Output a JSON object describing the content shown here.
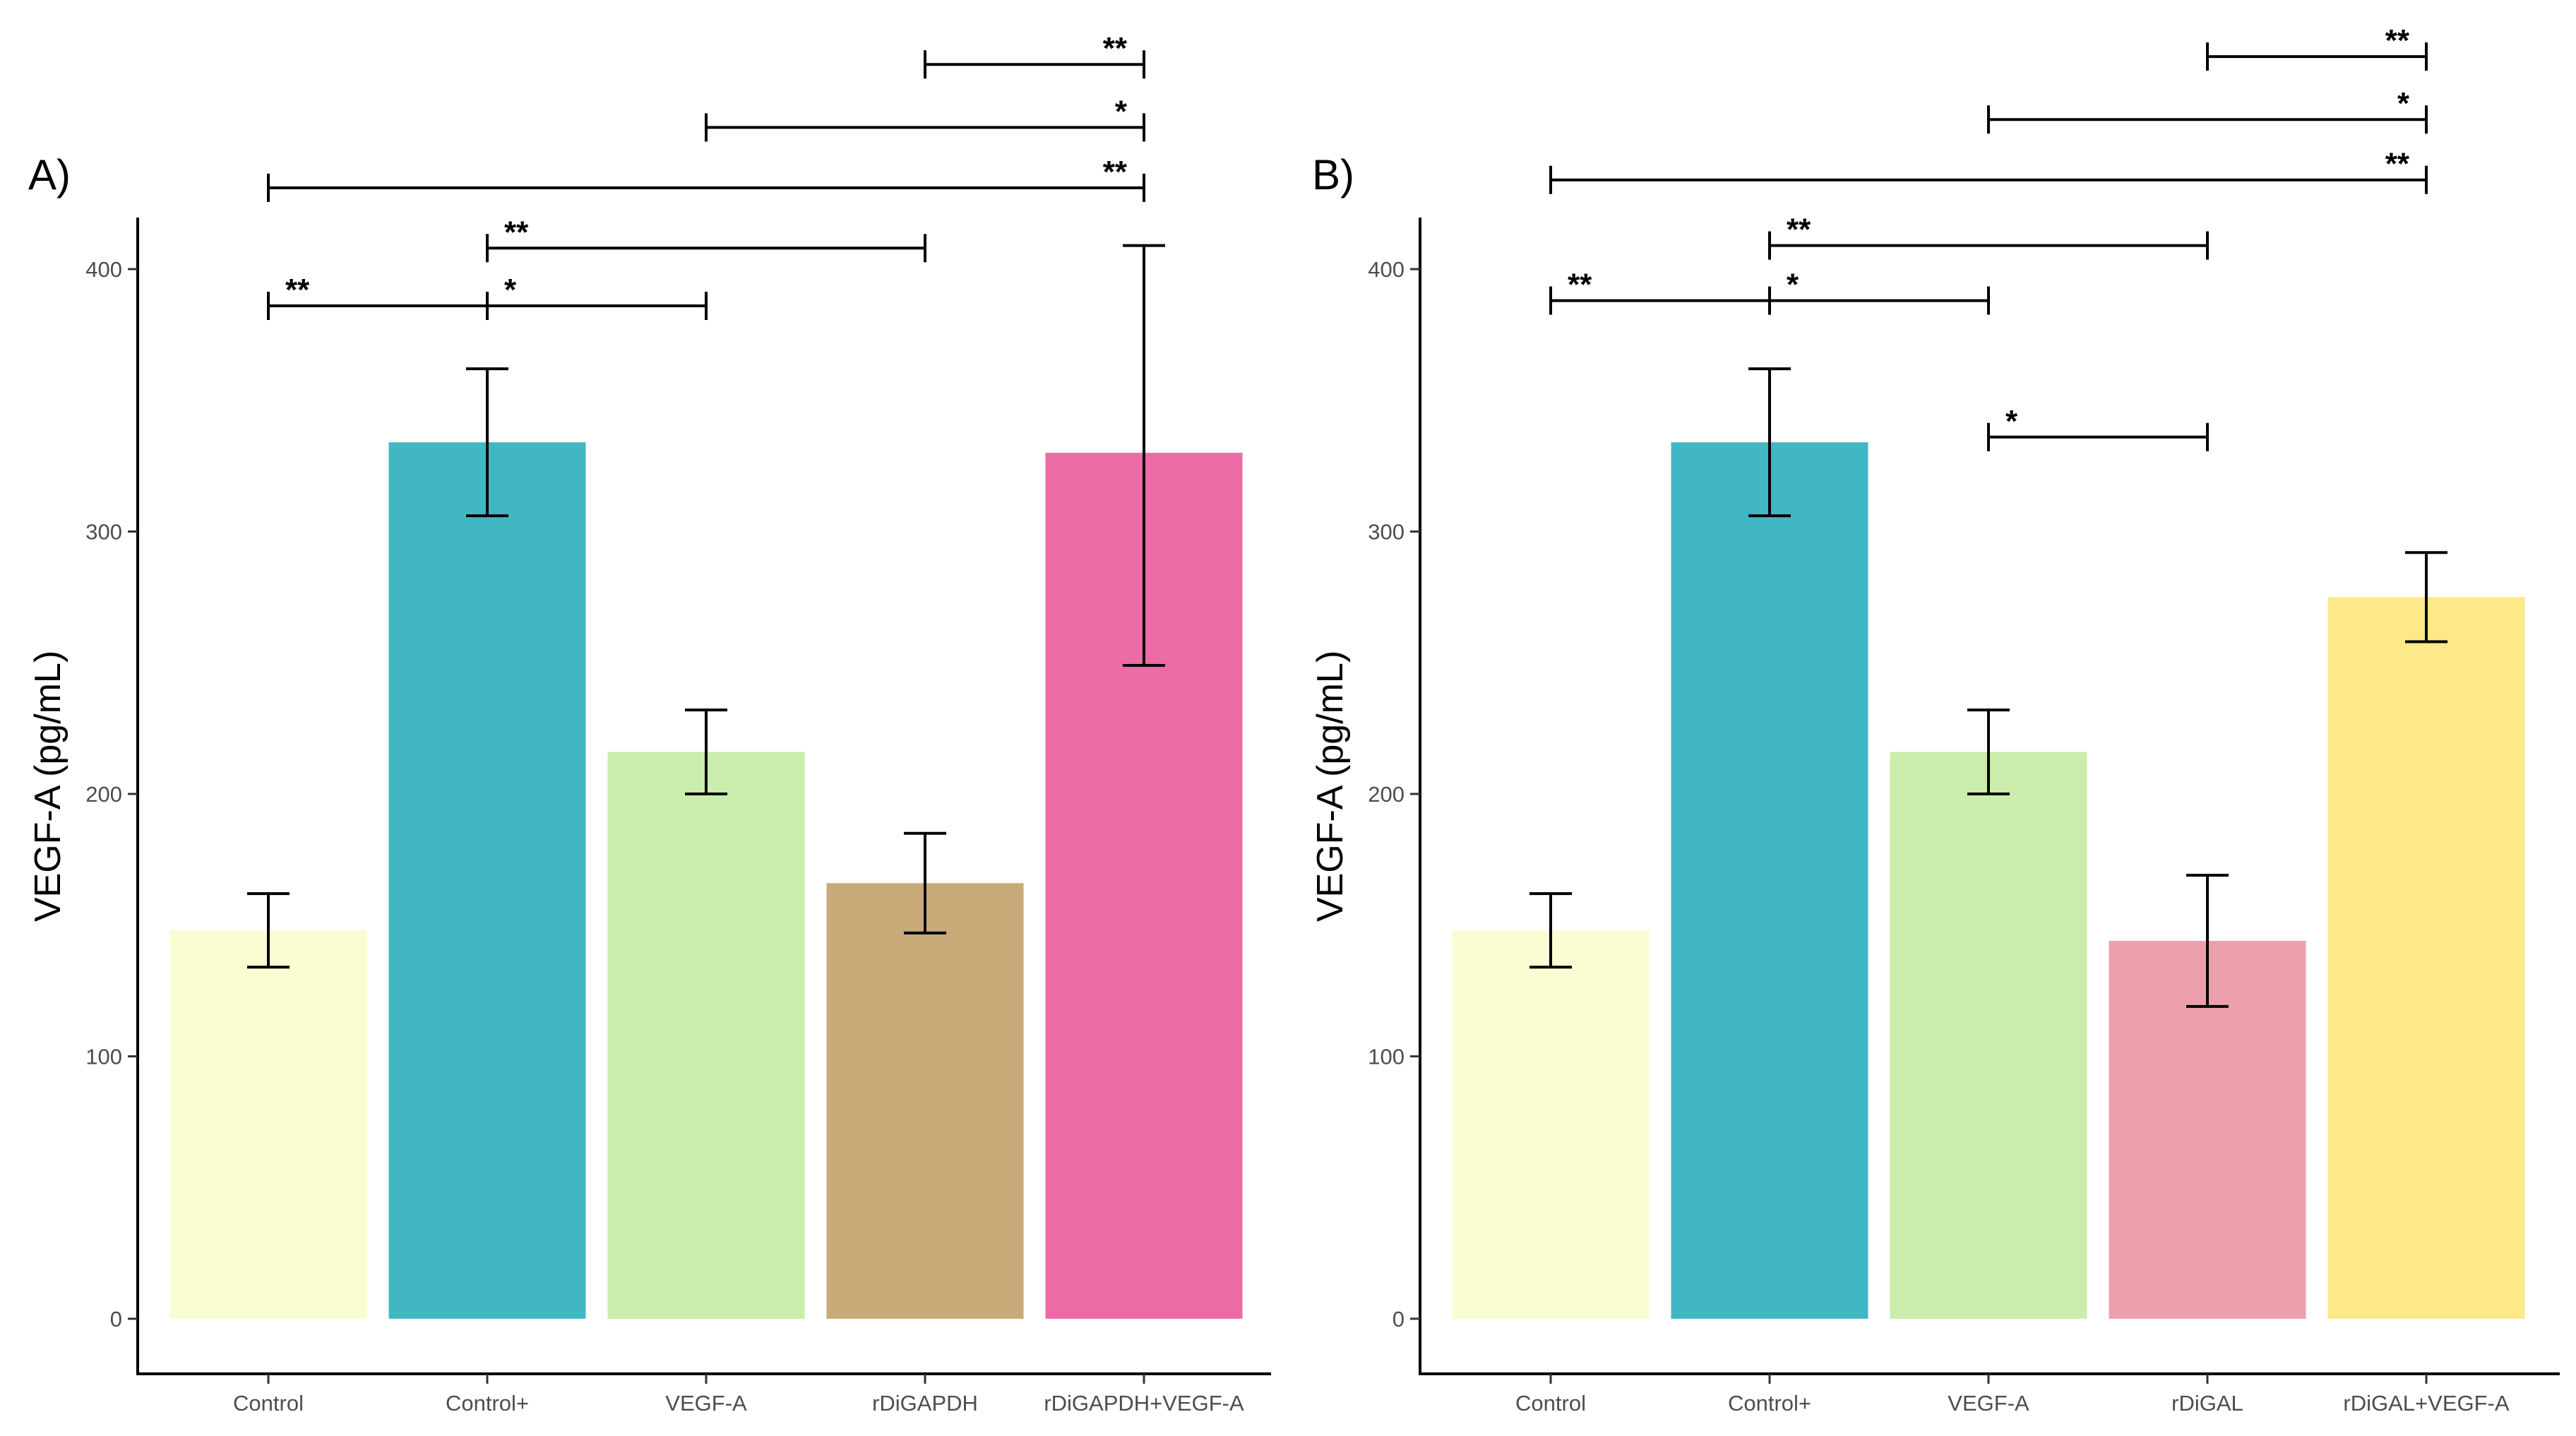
{
  "chart_data": [
    {
      "type": "bar",
      "panel_label": "A)",
      "title": "",
      "xlabel": "",
      "ylabel": "VEGF-A (pg/mL)",
      "ylim": [
        0,
        420
      ],
      "yticks": [
        0,
        100,
        200,
        300,
        400
      ],
      "grid": false,
      "legend": "none",
      "categories": [
        "Control",
        "Control+",
        "VEGF-A",
        "rDiGAPDH",
        "rDiGAPDH+VEGF-A"
      ],
      "values": [
        148,
        334,
        216,
        166,
        330
      ],
      "error_low": [
        134,
        306,
        200,
        147,
        249
      ],
      "error_high": [
        162,
        362,
        232,
        185,
        409
      ],
      "colors": [
        "#fafcd2",
        "#42b7c4",
        "#cbedab",
        "#c9aa79",
        "#ec6aa6"
      ],
      "significance": [
        {
          "from": "Control",
          "to": "Control+",
          "label": "**",
          "y": 386
        },
        {
          "from": "Control+",
          "to": "VEGF-A",
          "label": "*",
          "y": 386
        },
        {
          "from": "Control+",
          "to": "rDiGAPDH",
          "label": "**",
          "y": 408
        },
        {
          "from": "Control",
          "to": "rDiGAPDH+VEGF-A",
          "label": "**",
          "y": 431
        },
        {
          "from": "VEGF-A",
          "to": "rDiGAPDH+VEGF-A",
          "label": "*",
          "y": 454
        },
        {
          "from": "rDiGAPDH",
          "to": "rDiGAPDH+VEGF-A",
          "label": "**",
          "y": 478
        }
      ]
    },
    {
      "type": "bar",
      "panel_label": "B)",
      "title": "",
      "xlabel": "",
      "ylabel": "VEGF-A (pg/mL)",
      "ylim": [
        0,
        420
      ],
      "yticks": [
        0,
        100,
        200,
        300,
        400
      ],
      "grid": false,
      "legend": "none",
      "categories": [
        "Control",
        "Control+",
        "VEGF-A",
        "rDiGAL",
        "rDiGAL+VEGF-A"
      ],
      "values": [
        148,
        334,
        216,
        144,
        275
      ],
      "error_low": [
        134,
        306,
        200,
        119,
        258
      ],
      "error_high": [
        162,
        362,
        232,
        169,
        292
      ],
      "colors": [
        "#fafcd2",
        "#42b7c4",
        "#cbedab",
        "#eda0ab",
        "#fde88a"
      ],
      "significance": [
        {
          "from": "Control",
          "to": "Control+",
          "label": "**",
          "y": 388
        },
        {
          "from": "Control+",
          "to": "VEGF-A",
          "label": "*",
          "y": 388
        },
        {
          "from": "Control+",
          "to": "rDiGAL",
          "label": "**",
          "y": 409
        },
        {
          "from": "VEGF-A",
          "to": "rDiGAL",
          "label": "*",
          "y": 336
        },
        {
          "from": "Control",
          "to": "rDiGAL+VEGF-A",
          "label": "**",
          "y": 434
        },
        {
          "from": "VEGF-A",
          "to": "rDiGAL+VEGF-A",
          "label": "*",
          "y": 457
        },
        {
          "from": "rDiGAL",
          "to": "rDiGAL+VEGF-A",
          "label": "**",
          "y": 481
        }
      ]
    }
  ]
}
